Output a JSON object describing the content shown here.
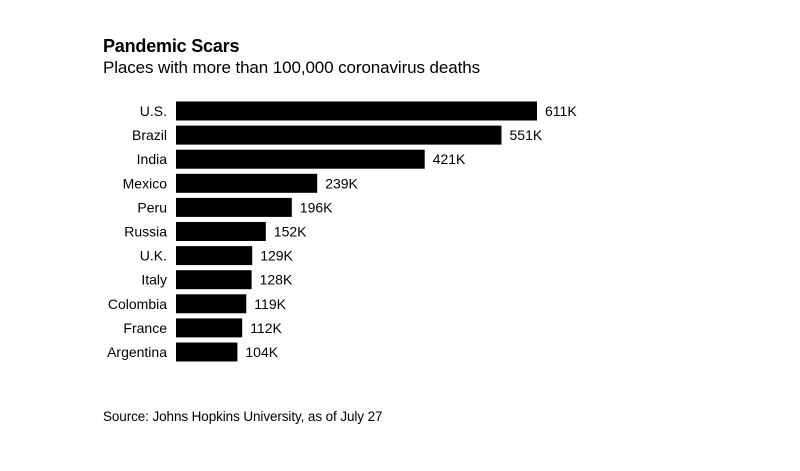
{
  "chart_data": {
    "type": "bar",
    "orientation": "horizontal",
    "title": "Pandemic Scars",
    "subtitle": "Places with more than 100,000 coronavirus deaths",
    "categories": [
      "U.S.",
      "Brazil",
      "India",
      "Mexico",
      "Peru",
      "Russia",
      "U.K.",
      "Italy",
      "Colombia",
      "France",
      "Argentina"
    ],
    "values": [
      611,
      551,
      421,
      239,
      196,
      152,
      129,
      128,
      119,
      112,
      104
    ],
    "value_labels": [
      "611K",
      "551K",
      "421K",
      "239K",
      "196K",
      "152K",
      "129K",
      "128K",
      "119K",
      "112K",
      "104K"
    ],
    "unit": "thousand deaths",
    "xlabel": "",
    "ylabel": "",
    "xlim": [
      0,
      611
    ],
    "grid": false,
    "bar_color": "#000000",
    "source": "Source: Johns Hopkins University, as of July 27"
  }
}
